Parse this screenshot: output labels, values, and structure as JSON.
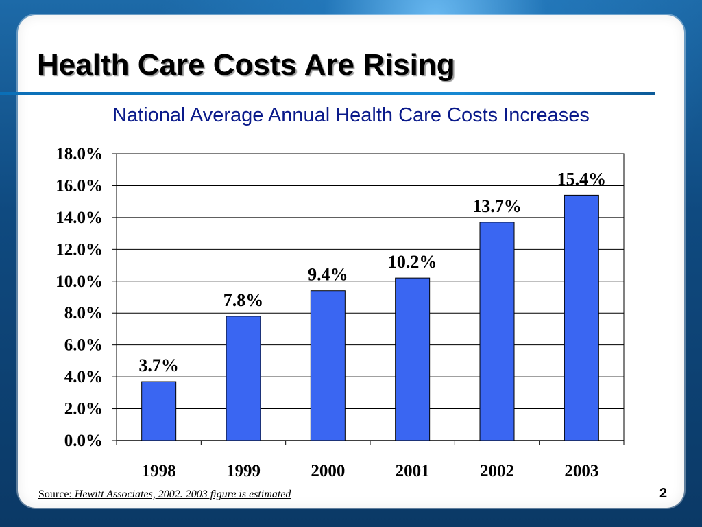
{
  "slide": {
    "title": "Health Care Costs Are Rising",
    "source_label": "Source:",
    "source_text": "Hewitt Associates, 2002. 2003 figure is estimated",
    "page_number": "2"
  },
  "colors": {
    "bar": "#3a66f2",
    "subtitle": "#0a1a8a",
    "title_rule": "#1789d3"
  },
  "chart_data": {
    "type": "bar",
    "title": "National Average Annual Health Care Costs Increases",
    "xlabel": "",
    "ylabel": "",
    "categories": [
      "1998",
      "1999",
      "2000",
      "2001",
      "2002",
      "2003"
    ],
    "values": [
      3.7,
      7.8,
      9.4,
      10.2,
      13.7,
      15.4
    ],
    "data_labels": [
      "3.7%",
      "7.8%",
      "9.4%",
      "10.2%",
      "13.7%",
      "15.4%"
    ],
    "ylim": [
      0,
      18
    ],
    "yticks": [
      0,
      2,
      4,
      6,
      8,
      10,
      12,
      14,
      16,
      18
    ],
    "ytick_labels": [
      "0.0%",
      "2.0%",
      "4.0%",
      "6.0%",
      "8.0%",
      "10.0%",
      "12.0%",
      "14.0%",
      "16.0%",
      "18.0%"
    ],
    "grid": true,
    "legend": "none"
  }
}
